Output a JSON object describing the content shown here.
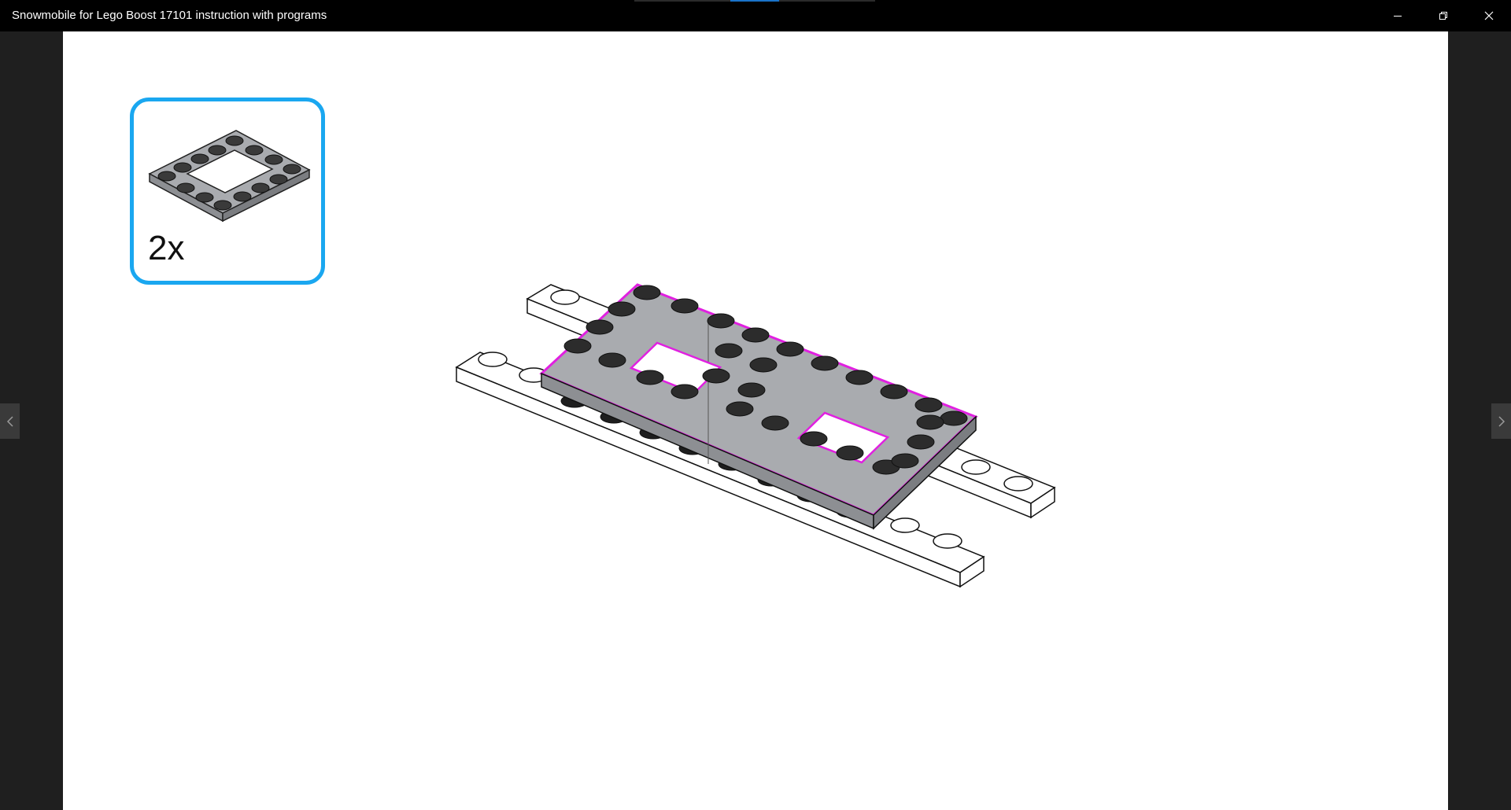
{
  "window": {
    "title": "Snowmobile for Lego Boost 17101 instruction with programs",
    "controls": {
      "minimize": "minimize-icon",
      "restore": "restore-icon",
      "close": "close-icon"
    }
  },
  "navigation": {
    "prev_icon": "chevron-left-icon",
    "next_icon": "chevron-right-icon"
  },
  "step": {
    "callout": {
      "quantity_label": "2x",
      "part": "frame-plate-4x4",
      "border_color": "#1aa7f0"
    },
    "assembly": {
      "highlight_color": "#e020e0",
      "part_color": "#a9abaf"
    }
  }
}
